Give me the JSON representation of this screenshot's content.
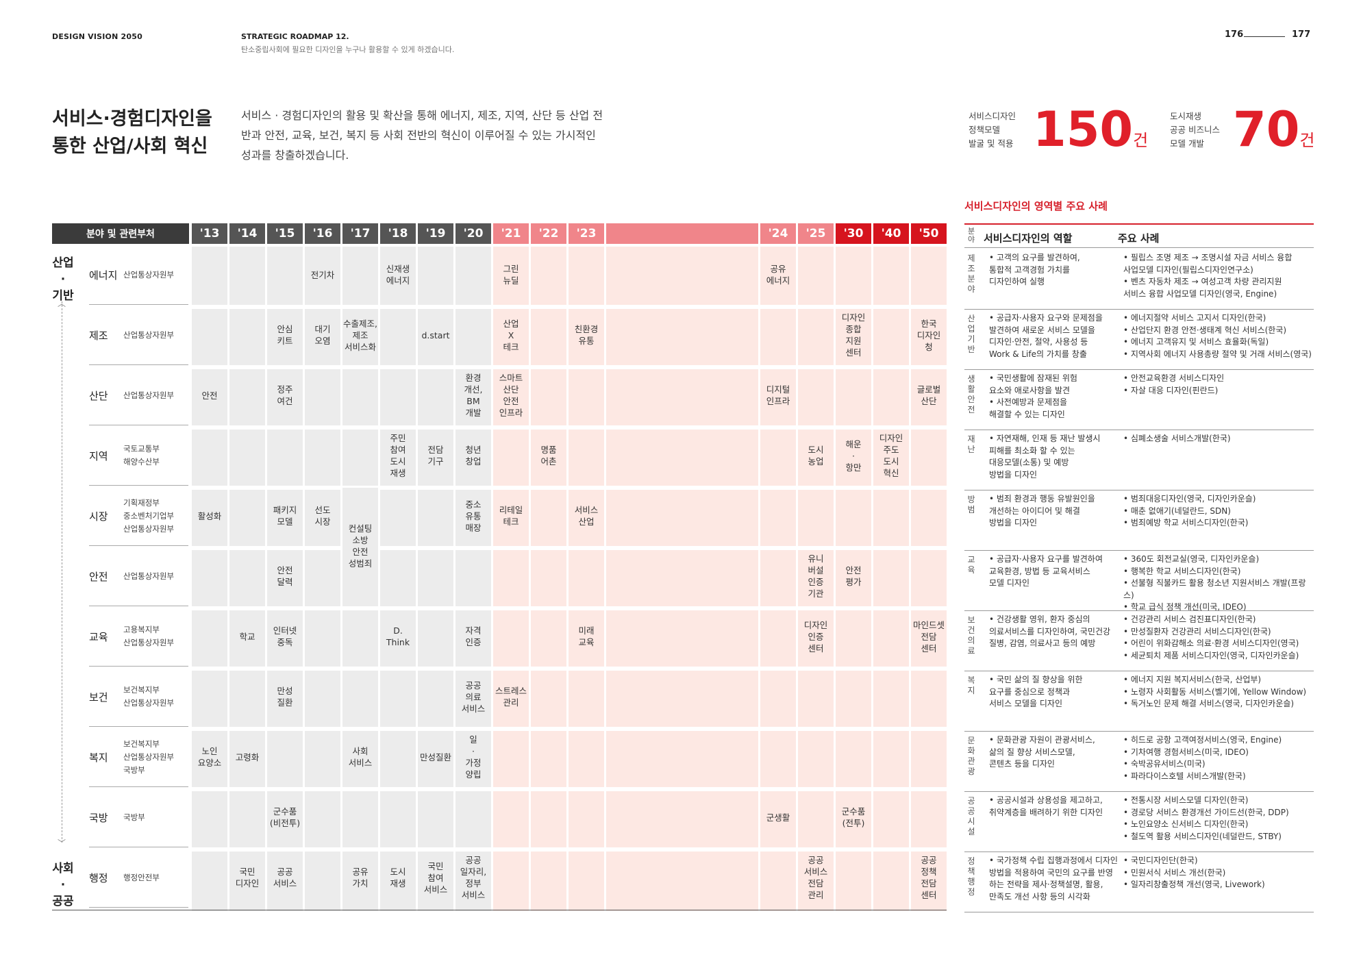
{
  "header": {
    "left": "DESIGN VISION 2050",
    "roadmap": "STRATEGIC ROADMAP  12.",
    "roadmap_sub": "탄소중립사회에 필요한 디자인을 누구나 활용할 수 있게 하겠습니다.",
    "page_left": "176",
    "page_right": "177"
  },
  "title": "서비스·경험디자인을\n통한 산업/사회 혁신",
  "description": "서비스 · 경험디자인의 활용 및 확산을 통해 에너지, 제조, 지역, 산단 등 산업 전반과 안전, 교육, 보건, 복지 등 사회 전반의 혁신이 이루어질 수 있는 가시적인 성과를 창출하겠습니다.",
  "stats": [
    {
      "label": "서비스디자인\n정책모델\n발굴 및 적용",
      "value": "150",
      "unit": "건"
    },
    {
      "label": "도시재생\n공공 비즈니스\n모델 개발",
      "value": "70",
      "unit": "건"
    }
  ],
  "timeline": {
    "field_header": "분야 및 관련부처",
    "years": [
      "'13",
      "'14",
      "'15",
      "'16",
      "'17",
      "'18",
      "'19",
      "'20",
      "'21",
      "'22",
      "'23",
      "'24",
      "'25",
      "'30",
      "'40",
      "'50"
    ],
    "groups": [
      "산업\n·\n기반",
      "사회\n·\n공공"
    ],
    "rows": [
      {
        "name": "에너지",
        "dept": "산업통상자원부"
      },
      {
        "name": "제조",
        "dept": "산업통상자원부"
      },
      {
        "name": "산단",
        "dept": "산업통상자원부"
      },
      {
        "name": "지역",
        "dept": "국토교통부\n해양수산부"
      },
      {
        "name": "시장",
        "dept": "기획재정부\n중소벤처기업부\n산업통상자원부"
      },
      {
        "name": "안전",
        "dept": "산업통상자원부"
      },
      {
        "name": "교육",
        "dept": "고용복지부\n산업통상자원부"
      },
      {
        "name": "보건",
        "dept": "보건복지부\n산업통상자원부"
      },
      {
        "name": "복지",
        "dept": "보건복지부\n산업통상자원부\n국방부"
      },
      {
        "name": "국방",
        "dept": "국방부"
      },
      {
        "name": "행정",
        "dept": "행정안전부"
      }
    ],
    "cells": [
      {
        "row": 0,
        "col": 3,
        "text": "전기차"
      },
      {
        "row": 0,
        "col": 5,
        "text": "신재생\n에너지"
      },
      {
        "row": 0,
        "col": 8,
        "text": "그린\n뉴딜"
      },
      {
        "row": 0,
        "col": 11,
        "text": "공유\n에너지"
      },
      {
        "row": 1,
        "col": 2,
        "text": "안심\n키트"
      },
      {
        "row": 1,
        "col": 3,
        "text": "대기\n오염"
      },
      {
        "row": 1,
        "col": 4,
        "text": "수출제조,\n제조\n서비스화"
      },
      {
        "row": 1,
        "col": 6,
        "text": "d.start"
      },
      {
        "row": 1,
        "col": 8,
        "text": "산업\nX\n테크"
      },
      {
        "row": 1,
        "col": 10,
        "text": "친환경\n유통"
      },
      {
        "row": 1,
        "col": 13,
        "text": "디자인\n종합\n지원\n센터"
      },
      {
        "row": 1,
        "col": 15,
        "text": "한국\n디자인\n청"
      },
      {
        "row": 2,
        "col": 0,
        "text": "안전"
      },
      {
        "row": 2,
        "col": 2,
        "text": "정주\n여건"
      },
      {
        "row": 2,
        "col": 7,
        "text": "환경\n개선,\nBM\n개발"
      },
      {
        "row": 2,
        "col": 8,
        "text": "스마트\n산단\n안전\n인프라"
      },
      {
        "row": 2,
        "col": 11,
        "text": "디지털\n인프라"
      },
      {
        "row": 2,
        "col": 15,
        "text": "글로벌\n산단"
      },
      {
        "row": 3,
        "col": 5,
        "text": "주민\n참여\n도시\n재생"
      },
      {
        "row": 3,
        "col": 6,
        "text": "전담\n기구"
      },
      {
        "row": 3,
        "col": 7,
        "text": "청년\n창업"
      },
      {
        "row": 3,
        "col": 9,
        "text": "명품\n어촌"
      },
      {
        "row": 3,
        "col": 12,
        "text": "도시\n농업"
      },
      {
        "row": 3,
        "col": 13,
        "text": "해운\n·\n항만"
      },
      {
        "row": 3,
        "col": 14,
        "text": "디자인\n주도\n도시\n혁신"
      },
      {
        "row": 4,
        "col": 0,
        "text": "활성화"
      },
      {
        "row": 4,
        "col": 2,
        "text": "패키지\n모델"
      },
      {
        "row": 4,
        "col": 3,
        "text": "선도\n시장"
      },
      {
        "row": 4,
        "col": 7,
        "text": "중소\n유통\n매장"
      },
      {
        "row": 4,
        "col": 8,
        "text": "리테일\n테크"
      },
      {
        "row": 4,
        "col": 10,
        "text": "서비스\n산업"
      },
      {
        "row": 5,
        "col": 2,
        "text": "안전\n달력"
      },
      {
        "row": 5,
        "col": 12,
        "text": "유니\n버설\n인증\n기관"
      },
      {
        "row": 5,
        "col": 13,
        "text": "안전\n평가"
      },
      {
        "row": 6,
        "col": 1,
        "text": "학교"
      },
      {
        "row": 6,
        "col": 2,
        "text": "인터넷\n중독"
      },
      {
        "row": 6,
        "col": 5,
        "text": "D.\nThink"
      },
      {
        "row": 6,
        "col": 7,
        "text": "자격\n인증"
      },
      {
        "row": 6,
        "col": 10,
        "text": "미래\n교육"
      },
      {
        "row": 6,
        "col": 12,
        "text": "디자인\n인증\n센터"
      },
      {
        "row": 6,
        "col": 15,
        "text": "마인드셋\n전담\n센터"
      },
      {
        "row": 7,
        "col": 2,
        "text": "만성\n질환"
      },
      {
        "row": 7,
        "col": 7,
        "text": "공공\n의료\n서비스"
      },
      {
        "row": 7,
        "col": 8,
        "text": "스트레스\n관리"
      },
      {
        "row": 8,
        "col": 0,
        "text": "노인\n요양소"
      },
      {
        "row": 8,
        "col": 1,
        "text": "고령화"
      },
      {
        "row": 8,
        "col": 4,
        "text": "사회\n서비스"
      },
      {
        "row": 8,
        "col": 6,
        "text": "만성질환"
      },
      {
        "row": 8,
        "col": 7,
        "text": "일\n·\n가정\n양립"
      },
      {
        "row": 9,
        "col": 2,
        "text": "군수품\n(비전투)"
      },
      {
        "row": 9,
        "col": 11,
        "text": "군생활"
      },
      {
        "row": 9,
        "col": 13,
        "text": "군수품\n(전투)"
      },
      {
        "row": 10,
        "col": 1,
        "text": "국민\n디자인"
      },
      {
        "row": 10,
        "col": 2,
        "text": "공공\n서비스"
      },
      {
        "row": 10,
        "col": 4,
        "text": "공유\n가치"
      },
      {
        "row": 10,
        "col": 5,
        "text": "도시\n재생"
      },
      {
        "row": 10,
        "col": 6,
        "text": "국민\n참여\n서비스"
      },
      {
        "row": 10,
        "col": 7,
        "text": "공공\n일자리,\n정부\n서비스"
      },
      {
        "row": 10,
        "col": 12,
        "text": "공공\n서비스\n전담\n관리"
      },
      {
        "row": 10,
        "col": 15,
        "text": "공공\n정책\n전담\n센터"
      }
    ],
    "merged": [
      {
        "rowStart": 4,
        "rowEnd": 5,
        "col": 4,
        "text": "컨설팅\n소방\n안전\n성범죄"
      }
    ]
  },
  "right_table": {
    "title": "서비스디자인의 영역별 주요 사례",
    "headers": {
      "cat": "분야",
      "role": "서비스디자인의 역할",
      "cases": "주요 사례"
    },
    "rows": [
      {
        "cat": "제\n조\n분\n야",
        "role": "• 고객의 요구를 발견하여,\n  통합적 고객경험 가치를\n  디자인하여 실행",
        "cases": "• 필립스 조명 제조 → 조명시설 자금 서비스 융합\n  사업모델 디자인(필립스디자인연구소)\n• 벤츠 자동차 제조 → 여성고객 차량 관리지원\n  서비스 융합 사업모델 디자인(영국, Engine)"
      },
      {
        "cat": "산\n업\n기\n반",
        "role": "• 공급자·사용자 요구와 문제점을\n  발견하여 새로운 서비스 모델을\n  디자인·안전, 절약, 사용성 등\n  Work & Life의 가치를 창출",
        "cases": "• 에너지절약 서비스 고지서 디자인(한국)\n• 산업단지 환경 안전·생태계 혁신 서비스(한국)\n• 에너지 고객유지 및 서비스 효율화(독일)\n• 지역사회 에너지 사용총량 절약 및 거래 서비스(영국)"
      },
      {
        "cat": "생\n활\n안\n전",
        "role": "• 국민생활에 잠재된 위험\n  요소와 애로사항을 발견\n• 사전예방과 문제점을\n  해결할 수 있는 디자인",
        "cases": "• 안전교육환경 서비스디자인\n• 자살 대응 디자인(핀란드)"
      },
      {
        "cat": "재\n난",
        "role": "• 자연재해, 인재 등 재난 발생시\n  피해를 최소화 할 수 있는\n  대응모델(소통) 및 예방\n  방법을 디자인",
        "cases": "• 심폐소생술 서비스개발(한국)"
      },
      {
        "cat": "방\n범",
        "role": "• 범죄 환경과 행동 유발원인을\n  개선하는 아이디어 및 해결\n  방법을 디자인",
        "cases": "• 범죄대응디자인(영국, 디자인카운슬)\n• 매춘 없애기(네덜란드, SDN)\n• 범죄예방 학교 서비스디자인(한국)"
      },
      {
        "cat": "교\n육",
        "role": "• 공급자·사용자 요구를 발견하여\n  교육환경, 방법 등 교육서비스\n  모델 디자인",
        "cases": "• 360도 회전교실(영국, 디자인카운슬)\n• 행복한 학교 서비스디자인(한국)\n• 선불형 직불카드 활용 청소년 지원서비스 개발(프랑스)\n• 학교 급식 정책 개선(미국, IDEO)"
      },
      {
        "cat": "보\n건\n의\n료",
        "role": "• 건강생활 영위, 환자 중심의\n  의료서비스를 디자인하여, 국민건강\n  질병, 감염, 의료사고 등의 예방",
        "cases": "• 건강관리 서비스 검진표디자인(한국)\n• 만성질환자 건강관리 서비스디자인(한국)\n• 어린이 위화감해소 의료·환경 서비스디자인(영국)\n• 세균퇴치 제품 서비스디자인(영국, 디자인카운슬)"
      },
      {
        "cat": "복\n지",
        "role": "• 국민 삶의 질 향상을 위한\n  요구를 중심으로 정책과\n  서비스 모델을 디자인",
        "cases": "• 에너지 지원 복지서비스(한국, 산업부)\n• 노령자 사회활동 서비스(벨기에, Yellow Window)\n• 독거노인 문제 해결 서비스(영국, 디자인카운슬)"
      },
      {
        "cat": "문\n화\n관\n광",
        "role": "• 문화관광 자원이 관광서비스,\n  삶의 질 향상 서비스모델,\n  콘텐츠 등을 디자인",
        "cases": "• 히드로 공항 고객여정서비스(영국, Engine)\n• 기차여행 경험서비스(미국, IDEO)\n• 숙박공유서비스(미국)\n• 파라다이스호텔 서비스개발(한국)"
      },
      {
        "cat": "공\n공\n시\n설",
        "role": "• 공공시설과 상용성을 제고하고,\n  취약계층을 배려하기 위한 디자인",
        "cases": "• 전통시장 서비스모델 디자인(한국)\n• 경로당 서비스 환경개선 가이드선(한국, DDP)\n• 노인요양소 신서비스 디자인(한국)\n• 철도역 활용 서비스디자인(네덜란드, STBY)"
      },
      {
        "cat": "정\n책\n행\n정",
        "role": "• 국가정책 수립 집행과정에서 디자인\n  방법을 적용하여 국민의 요구를 반영\n  하는 전략을 제사·정책설명, 활용,\n  만족도 개선 사항 등의 시각화",
        "cases": "• 국민디자인단(한국)\n• 민원서식 서비스 개선(한국)\n• 일자리창출정책 개선(영국, Livework)"
      }
    ]
  },
  "colors": {
    "accent": "#e0202a",
    "gray_col": "#ececec",
    "pink_col": "#fde8e3",
    "pink_hd": "#f0858a",
    "dark_hd": "#555555"
  }
}
